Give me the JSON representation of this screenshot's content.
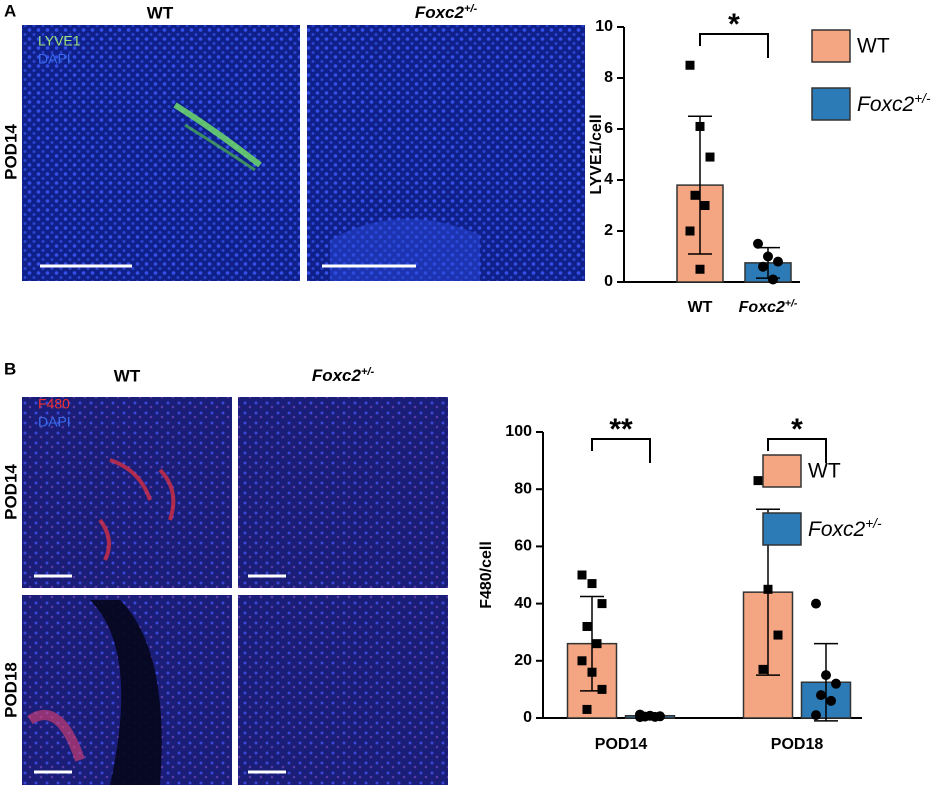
{
  "figure": {
    "panel_a": {
      "label": "A",
      "columns": [
        "WT",
        "Foxc2+/-"
      ],
      "rows": [
        "POD14"
      ],
      "stains": [
        "LYVE1",
        "DAPI"
      ]
    },
    "panel_b": {
      "label": "B",
      "columns": [
        "WT",
        "Foxc2+/-"
      ],
      "rows": [
        "POD14",
        "POD18"
      ],
      "stains": [
        "F480",
        "DAPI"
      ]
    }
  },
  "chart_data": [
    {
      "type": "bar",
      "ylabel": "LYVE1/cell",
      "ylim": [
        0,
        10
      ],
      "yticks": [
        0,
        2,
        4,
        6,
        8,
        10
      ],
      "annotations": [
        "*"
      ],
      "series": [
        {
          "name": "WT",
          "color": "#f4a582",
          "marker": "square",
          "values": [
            3.8
          ],
          "errors": [
            2.7
          ],
          "points": [
            [
              8.5,
              6.1,
              4.9,
              3.4,
              3.0,
              2.0,
              0.5
            ]
          ]
        },
        {
          "name": "Foxc2+/-",
          "color": "#2c7bb6",
          "marker": "circle",
          "values": [
            0.75
          ],
          "errors": [
            0.6
          ],
          "points": [
            [
              1.5,
              1.0,
              0.8,
              0.6,
              0.1
            ]
          ]
        }
      ]
    },
    {
      "type": "bar",
      "ylabel": "F480/cell",
      "ylim": [
        0,
        100
      ],
      "yticks": [
        0,
        20,
        40,
        60,
        80,
        100
      ],
      "categories": [
        "POD14",
        "POD18"
      ],
      "annotations": [
        "**",
        "*"
      ],
      "series": [
        {
          "name": "WT",
          "color": "#f4a582",
          "marker": "square",
          "values": [
            26,
            44
          ],
          "errors": [
            16.5,
            29
          ],
          "points": [
            [
              50,
              47,
              40,
              32,
              26,
              20,
              16,
              10,
              3
            ],
            [
              83,
              45,
              29,
              17
            ]
          ]
        },
        {
          "name": "Foxc2+/-",
          "color": "#2c7bb6",
          "marker": "circle",
          "values": [
            0.8,
            12.5
          ],
          "errors": [
            0.5,
            13.5
          ],
          "points": [
            [
              1.2,
              0.8,
              0.6,
              0.5,
              0.4,
              0.3
            ],
            [
              40,
              15,
              12,
              8,
              6,
              1
            ]
          ]
        }
      ]
    }
  ]
}
